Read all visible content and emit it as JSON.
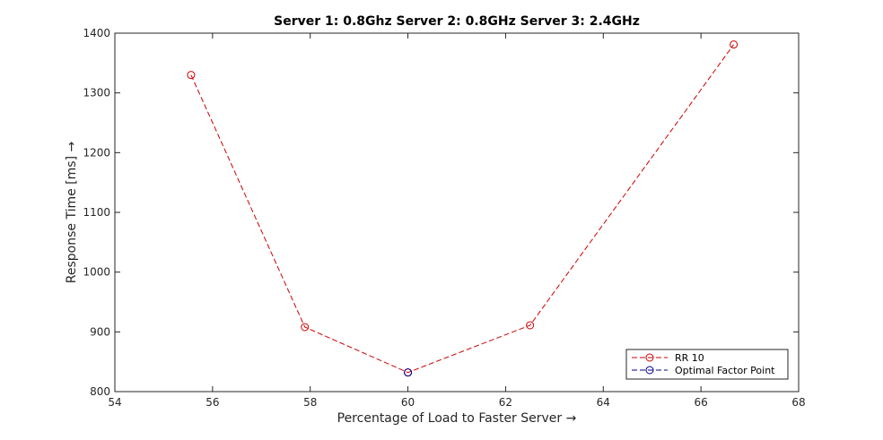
{
  "chart_data": {
    "type": "line",
    "title": "Server 1: 0.8Ghz Server 2: 0.8GHz Server 3: 2.4GHz",
    "xlabel": "Percentage of Load to Faster Server →",
    "ylabel": "Response Time [ms] →",
    "xlim": [
      54,
      68
    ],
    "ylim": [
      800,
      1400
    ],
    "xticks": [
      54,
      56,
      58,
      60,
      62,
      64,
      66,
      68
    ],
    "yticks": [
      800,
      900,
      1000,
      1100,
      1200,
      1300,
      1400
    ],
    "grid": false,
    "legend_position": "bottom-right",
    "series": [
      {
        "name": "RR 10",
        "color": "#cc0000",
        "line_style": "dashed",
        "marker": "circle",
        "x": [
          55.56,
          57.89,
          60.0,
          62.5,
          66.67
        ],
        "y": [
          1330,
          908,
          832,
          911,
          1381
        ]
      },
      {
        "name": "Optimal Factor Point",
        "color": "#00008b",
        "line_style": "dashed",
        "marker": "circle",
        "x": [
          60.0
        ],
        "y": [
          832
        ]
      }
    ]
  }
}
